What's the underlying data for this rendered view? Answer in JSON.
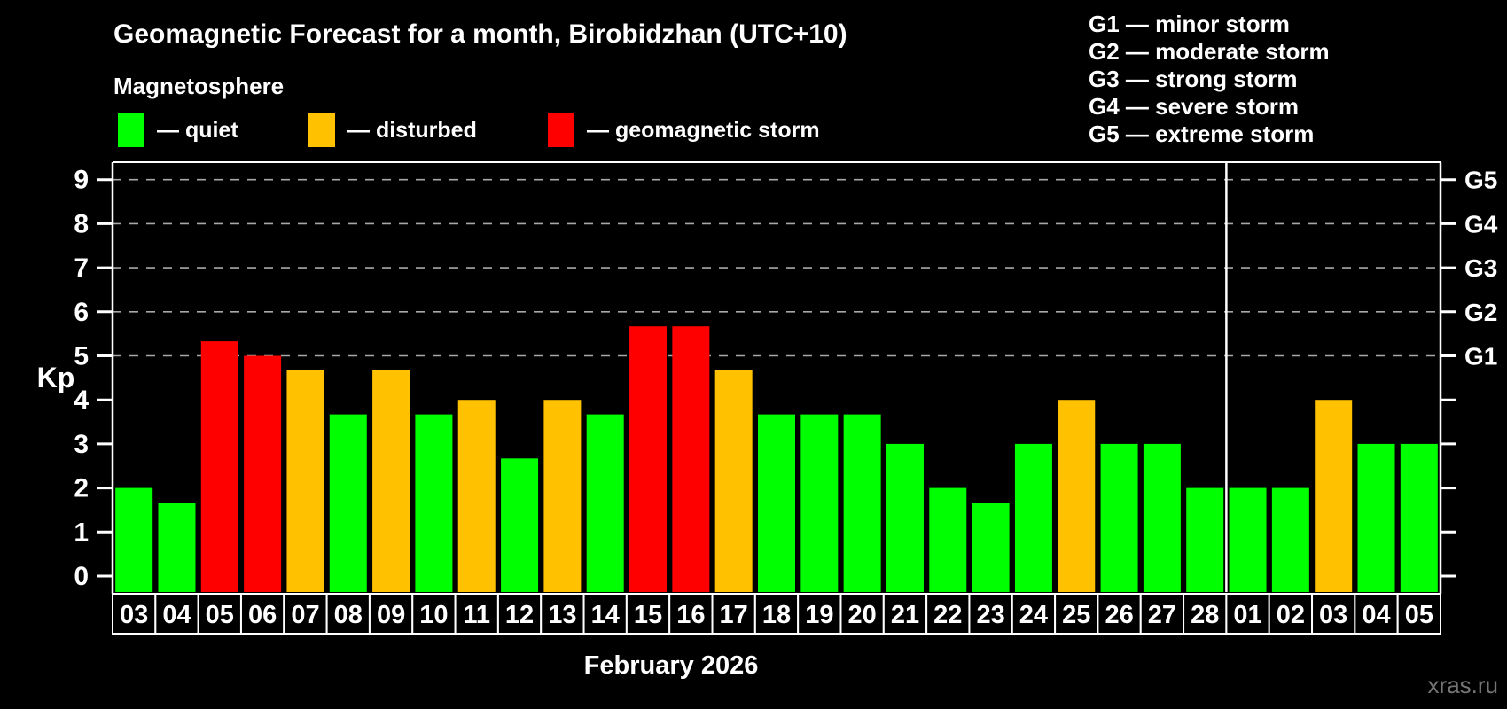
{
  "title": "Geomagnetic Forecast for a month, Birobidzhan (UTC+10)",
  "subtitle": "Magnetosphere",
  "legend": {
    "items": [
      {
        "key": "quiet",
        "label": "— quiet",
        "color": "#00ff00"
      },
      {
        "key": "disturbed",
        "label": "— disturbed",
        "color": "#ffc100"
      },
      {
        "key": "storm",
        "label": "— geomagnetic storm",
        "color": "#ff0000"
      }
    ]
  },
  "g_scale_legend": {
    "lines": [
      "G1 — minor storm",
      "G2 — moderate storm",
      "G3 — strong storm",
      "G4 — severe storm",
      "G5 — extreme storm"
    ]
  },
  "watermark": "xras.ru",
  "chart_data": {
    "type": "bar",
    "title": "Geomagnetic Forecast for a month, Birobidzhan (UTC+10)",
    "xlabel": "February 2026",
    "ylabel": "Kp",
    "ylim": [
      0,
      9
    ],
    "y_ticks": [
      0,
      1,
      2,
      3,
      4,
      5,
      6,
      7,
      8,
      9
    ],
    "gridlines_at": [
      5,
      6,
      7,
      8,
      9
    ],
    "grid": "dashed",
    "legend_position": "top",
    "categories": [
      "03",
      "04",
      "05",
      "06",
      "07",
      "08",
      "09",
      "10",
      "11",
      "12",
      "13",
      "14",
      "15",
      "16",
      "17",
      "18",
      "19",
      "20",
      "21",
      "22",
      "23",
      "24",
      "25",
      "26",
      "27",
      "28",
      "01",
      "02",
      "03",
      "04",
      "05"
    ],
    "values": [
      2.0,
      1.67,
      5.33,
      5.0,
      4.67,
      3.67,
      4.67,
      3.67,
      4.0,
      2.67,
      4.0,
      3.67,
      5.67,
      5.67,
      4.67,
      3.67,
      3.67,
      3.67,
      3.0,
      2.0,
      1.67,
      3.0,
      4.0,
      3.0,
      3.0,
      2.0,
      2.0,
      2.0,
      4.0,
      3.0,
      3.0
    ],
    "status": [
      "quiet",
      "quiet",
      "storm",
      "storm",
      "disturbed",
      "quiet",
      "disturbed",
      "quiet",
      "disturbed",
      "quiet",
      "disturbed",
      "quiet",
      "storm",
      "storm",
      "disturbed",
      "quiet",
      "quiet",
      "quiet",
      "quiet",
      "quiet",
      "quiet",
      "quiet",
      "disturbed",
      "quiet",
      "quiet",
      "quiet",
      "quiet",
      "quiet",
      "disturbed",
      "quiet",
      "quiet"
    ],
    "colors": {
      "quiet": "#00ff00",
      "disturbed": "#ffc100",
      "storm": "#ff0000"
    },
    "right_axis_labels": [
      {
        "label": "G1",
        "kp": 5
      },
      {
        "label": "G2",
        "kp": 6
      },
      {
        "label": "G3",
        "kp": 7
      },
      {
        "label": "G4",
        "kp": 8
      },
      {
        "label": "G5",
        "kp": 9
      }
    ],
    "month_separator_after_index": 25
  }
}
